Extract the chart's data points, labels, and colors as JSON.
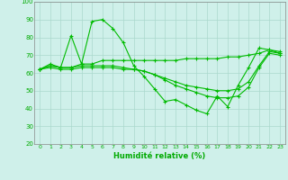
{
  "xlabel": "Humidité relative (%)",
  "xlim": [
    -0.5,
    23.5
  ],
  "ylim": [
    20,
    100
  ],
  "xticks": [
    0,
    1,
    2,
    3,
    4,
    5,
    6,
    7,
    8,
    9,
    10,
    11,
    12,
    13,
    14,
    15,
    16,
    17,
    18,
    19,
    20,
    21,
    22,
    23
  ],
  "yticks": [
    20,
    30,
    40,
    50,
    60,
    70,
    80,
    90,
    100
  ],
  "bg_color": "#cff0ea",
  "grid_color": "#aad8cc",
  "line_color": "#00bb00",
  "lines": [
    [
      62,
      65,
      63,
      81,
      65,
      89,
      90,
      85,
      77,
      64,
      58,
      51,
      44,
      45,
      42,
      39,
      37,
      47,
      41,
      53,
      63,
      74,
      73,
      72
    ],
    [
      62,
      64,
      63,
      63,
      65,
      65,
      67,
      67,
      67,
      67,
      67,
      67,
      67,
      67,
      68,
      68,
      68,
      68,
      69,
      69,
      70,
      71,
      73,
      71
    ],
    [
      62,
      64,
      63,
      63,
      64,
      64,
      64,
      64,
      63,
      62,
      61,
      59,
      57,
      55,
      53,
      52,
      51,
      50,
      50,
      51,
      55,
      64,
      72,
      71
    ],
    [
      62,
      63,
      62,
      62,
      63,
      63,
      63,
      63,
      62,
      62,
      61,
      59,
      56,
      53,
      51,
      49,
      47,
      46,
      46,
      47,
      52,
      63,
      71,
      70
    ]
  ]
}
